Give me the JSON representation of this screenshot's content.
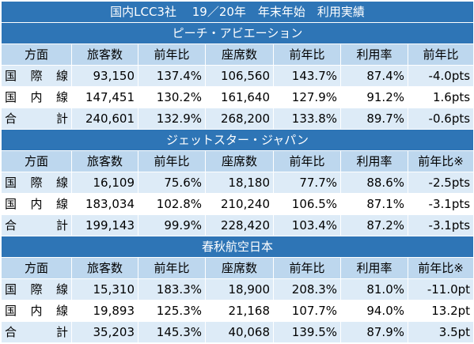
{
  "title": "国内LCC3社　 19／20年　年末年始　利用実績",
  "sections": [
    {
      "name": "ピーチ・アビエーション",
      "headers": [
        "方面",
        "旅客数",
        "前年比",
        "座席数",
        "前年比",
        "利用率",
        "前年比"
      ],
      "rows": [
        {
          "label": "国際線",
          "values": [
            "93,150",
            "137.4%",
            "106,560",
            "143.7%",
            "87.4%",
            "-4.0pts"
          ]
        },
        {
          "label": "国内線",
          "values": [
            "147,451",
            "130.2%",
            "161,640",
            "127.9%",
            "91.2%",
            "1.6pts"
          ]
        },
        {
          "label": "合計",
          "values": [
            "240,601",
            "132.9%",
            "268,200",
            "133.8%",
            "89.7%",
            "-0.6pts"
          ]
        }
      ]
    },
    {
      "name": "ジェットスター・ジャパン",
      "headers": [
        "方面",
        "旅客数",
        "前年比",
        "座席数",
        "前年比",
        "利用率",
        "前年比※"
      ],
      "rows": [
        {
          "label": "国際線",
          "values": [
            "16,109",
            "75.6%",
            "18,180",
            "77.7%",
            "88.6%",
            "-2.5pts"
          ]
        },
        {
          "label": "国内線",
          "values": [
            "183,034",
            "102.8%",
            "210,240",
            "106.5%",
            "87.1%",
            "-3.1pts"
          ]
        },
        {
          "label": "合計",
          "values": [
            "199,143",
            "99.9%",
            "228,420",
            "103.4%",
            "87.2%",
            "-3.1pts"
          ]
        }
      ]
    },
    {
      "name": "春秋航空日本",
      "headers": [
        "方面",
        "旅客数",
        "前年比",
        "座席数",
        "前年比",
        "利用率",
        "前年比※"
      ],
      "rows": [
        {
          "label": "国際線",
          "values": [
            "15,310",
            "183.3%",
            "18,900",
            "208.3%",
            "81.0%",
            "-11.0pt"
          ]
        },
        {
          "label": "国内線",
          "values": [
            "19,893",
            "125.3%",
            "21,168",
            "107.7%",
            "94.0%",
            "13.2pt"
          ]
        },
        {
          "label": "合計",
          "values": [
            "35,203",
            "145.3%",
            "40,068",
            "139.5%",
            "87.9%",
            "3.5pt"
          ]
        }
      ]
    }
  ]
}
